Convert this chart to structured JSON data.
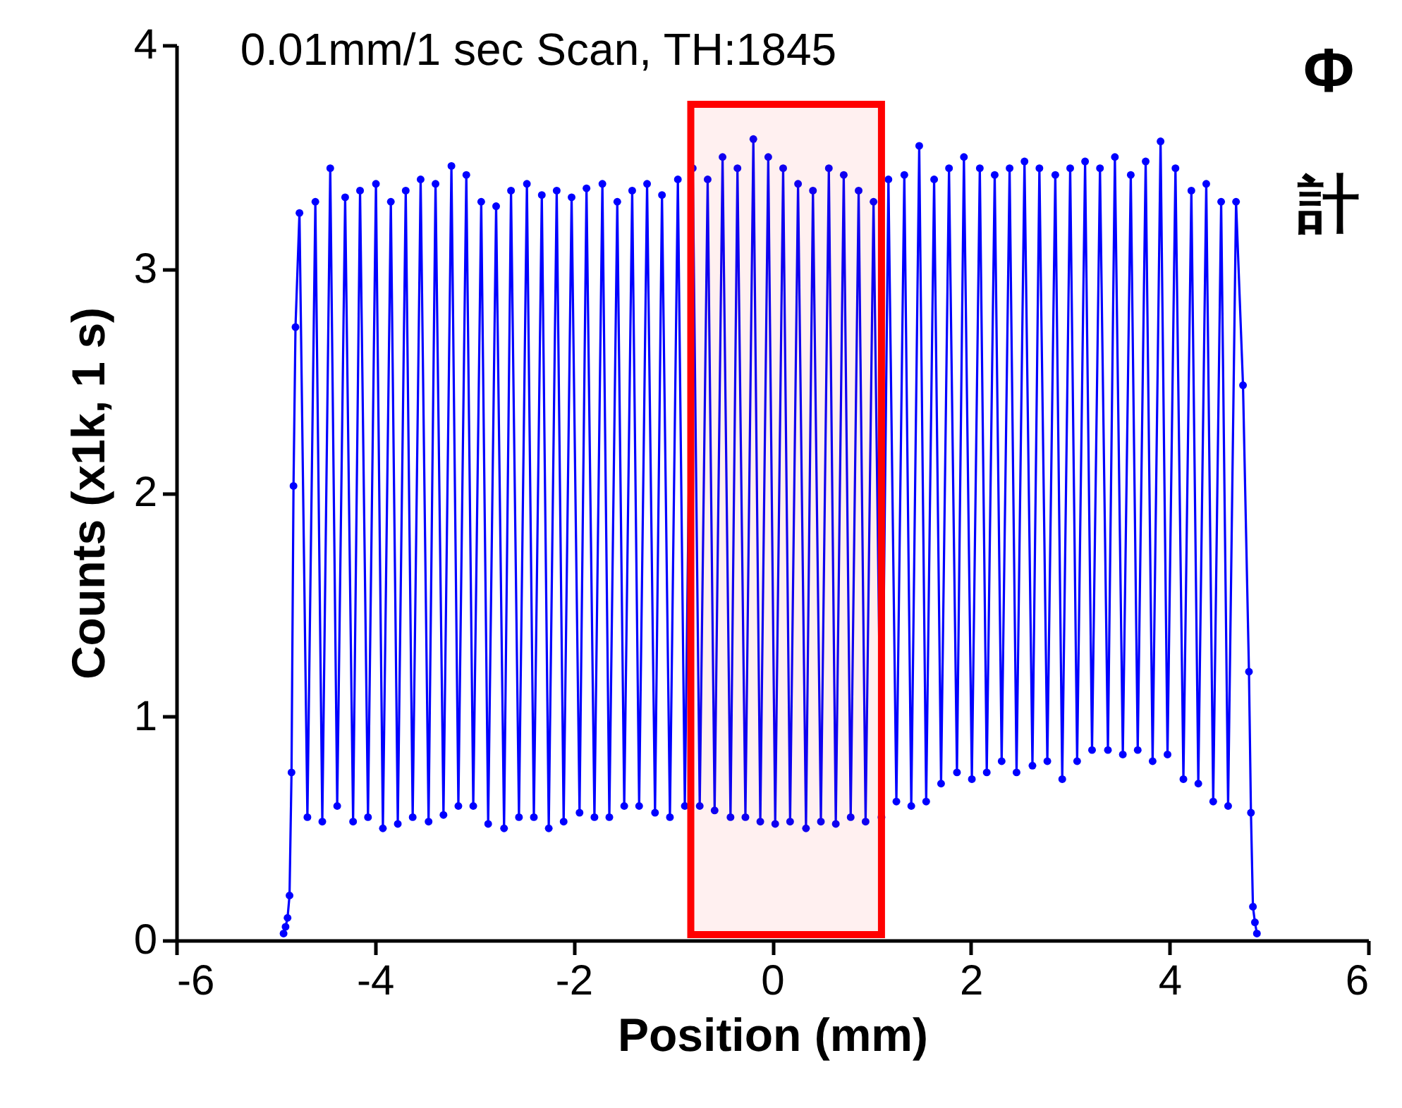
{
  "chart_data": {
    "type": "line",
    "title": "0.01mm/1 sec Scan, TH:1845",
    "xlabel": "Position (mm)",
    "ylabel": "Counts (x1k, 1 s)",
    "xlim": [
      -6,
      6
    ],
    "ylim": [
      0,
      4
    ],
    "xticks": [
      -6,
      -4,
      -2,
      0,
      2,
      4,
      6
    ],
    "yticks": [
      0,
      1,
      2,
      3,
      4
    ],
    "grid": false,
    "marker": "circle",
    "line_style": "solid",
    "annotations": [
      "Φ",
      "計"
    ],
    "bands": [
      {
        "axis": "x",
        "from": -0.82,
        "to": 1.1,
        "color": "#ff0000"
      }
    ],
    "series": [
      {
        "color": "#0000ff",
        "x": [
          -4.92,
          -4.9,
          -4.88,
          -4.86,
          -4.84,
          -4.82,
          -4.8,
          -4.76,
          -4.68,
          -4.6,
          -4.53,
          -4.45,
          -4.38,
          -4.3,
          -4.22,
          -4.15,
          -4.07,
          -3.99,
          -3.92,
          -3.84,
          -3.77,
          -3.69,
          -3.62,
          -3.54,
          -3.46,
          -3.39,
          -3.31,
          -3.23,
          -3.16,
          -3.08,
          -3.01,
          -2.93,
          -2.86,
          -2.78,
          -2.7,
          -2.63,
          -2.55,
          -2.47,
          -2.4,
          -2.32,
          -2.25,
          -2.17,
          -2.1,
          -2.02,
          -1.94,
          -1.87,
          -1.79,
          -1.71,
          -1.64,
          -1.56,
          -1.49,
          -1.41,
          -1.34,
          -1.26,
          -1.18,
          -1.11,
          -1.03,
          -0.95,
          -0.88,
          -0.8,
          -0.73,
          -0.65,
          -0.58,
          -0.5,
          -0.42,
          -0.35,
          -0.27,
          -0.19,
          -0.12,
          -0.04,
          0.03,
          0.11,
          0.18,
          0.26,
          0.34,
          0.41,
          0.49,
          0.57,
          0.64,
          0.72,
          0.79,
          0.87,
          0.94,
          1.02,
          1.1,
          1.17,
          1.25,
          1.33,
          1.4,
          1.48,
          1.55,
          1.63,
          1.7,
          1.78,
          1.86,
          1.93,
          2.01,
          2.09,
          2.16,
          2.24,
          2.31,
          2.39,
          2.46,
          2.54,
          2.62,
          2.69,
          2.77,
          2.85,
          2.92,
          3.0,
          3.07,
          3.15,
          3.22,
          3.3,
          3.38,
          3.45,
          3.53,
          3.61,
          3.68,
          3.76,
          3.83,
          3.91,
          3.98,
          4.06,
          4.14,
          4.22,
          4.29,
          4.37,
          4.44,
          4.52,
          4.59,
          4.67,
          4.74,
          4.8,
          4.82,
          4.84,
          4.86,
          4.88
        ],
        "values": [
          0.03,
          0.06,
          0.1,
          0.2,
          0.75,
          2.03,
          2.74,
          3.25,
          0.55,
          3.3,
          0.53,
          3.45,
          0.6,
          3.32,
          0.53,
          3.35,
          0.55,
          3.38,
          0.5,
          3.3,
          0.52,
          3.35,
          0.55,
          3.4,
          0.53,
          3.38,
          0.56,
          3.46,
          0.6,
          3.42,
          0.6,
          3.3,
          0.52,
          3.28,
          0.5,
          3.35,
          0.55,
          3.38,
          0.55,
          3.33,
          0.5,
          3.35,
          0.53,
          3.32,
          0.57,
          3.36,
          0.55,
          3.38,
          0.55,
          3.3,
          0.6,
          3.35,
          0.6,
          3.38,
          0.57,
          3.33,
          0.55,
          3.4,
          0.6,
          3.45,
          0.6,
          3.4,
          0.58,
          3.5,
          0.55,
          3.45,
          0.55,
          3.58,
          0.53,
          3.5,
          0.52,
          3.45,
          0.53,
          3.38,
          0.5,
          3.35,
          0.53,
          3.45,
          0.52,
          3.42,
          0.55,
          3.35,
          0.53,
          3.3,
          0.55,
          3.4,
          0.62,
          3.42,
          0.6,
          3.55,
          0.62,
          3.4,
          0.7,
          3.45,
          0.75,
          3.5,
          0.72,
          3.45,
          0.75,
          3.42,
          0.8,
          3.45,
          0.75,
          3.48,
          0.78,
          3.45,
          0.8,
          3.42,
          0.72,
          3.45,
          0.8,
          3.48,
          0.85,
          3.45,
          0.85,
          3.5,
          0.83,
          3.42,
          0.85,
          3.48,
          0.8,
          3.57,
          0.83,
          3.45,
          0.72,
          3.35,
          0.7,
          3.38,
          0.62,
          3.3,
          0.6,
          3.3,
          2.48,
          1.2,
          0.57,
          0.15,
          0.08,
          0.03
        ]
      }
    ]
  }
}
